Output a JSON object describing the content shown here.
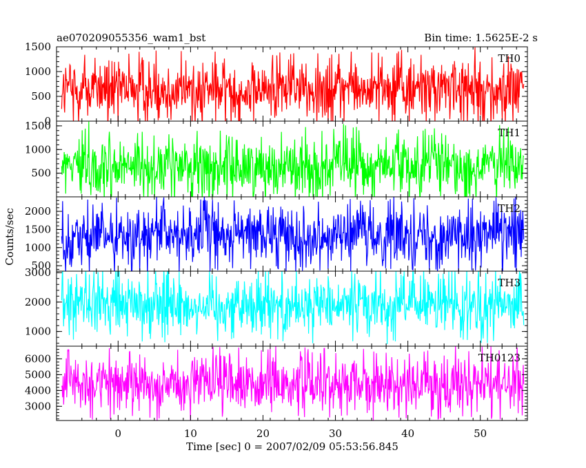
{
  "header": {
    "title": "ae070209055356_wam1_bst",
    "bin_time": "Bin time: 1.5625E-2 s"
  },
  "chart_data": {
    "type": "line",
    "title": "ae070209055356_wam1_bst",
    "xlabel": "Time [sec] 0 = 2007/02/09 05:53:56.845",
    "ylabel": "Counts/sec",
    "xlim": [
      -8.5,
      56.5
    ],
    "x_ticks": [
      0,
      10,
      20,
      30,
      40,
      50
    ],
    "x_range_data": [
      -7.8,
      56
    ],
    "grid": false,
    "panels": [
      {
        "name": "TH0",
        "color": "#ff0000",
        "ylim": [
          0,
          1500
        ],
        "y_ticks": [
          0,
          500,
          1000,
          1500
        ],
        "mean": 650,
        "min": 60,
        "max": 1500
      },
      {
        "name": "TH1",
        "color": "#00ff00",
        "ylim": [
          0,
          1600
        ],
        "y_ticks": [
          500,
          1000,
          1500
        ],
        "mean": 650,
        "min": 60,
        "max": 1580
      },
      {
        "name": "TH2",
        "color": "#0000ff",
        "ylim": [
          350,
          2400
        ],
        "y_ticks": [
          500,
          1000,
          1500,
          2000
        ],
        "mean": 1350,
        "min": 450,
        "max": 2400
      },
      {
        "name": "TH3",
        "color": "#00ffff",
        "ylim": [
          500,
          3050
        ],
        "y_ticks": [
          1000,
          2000,
          3000
        ],
        "mean": 1900,
        "min": 650,
        "max": 3050
      },
      {
        "name": "TH0123",
        "color": "#ff00ff",
        "ylim": [
          2100,
          6800
        ],
        "y_ticks": [
          3000,
          4000,
          5000,
          6000
        ],
        "mean": 4450,
        "min": 2350,
        "max": 6600
      }
    ]
  }
}
